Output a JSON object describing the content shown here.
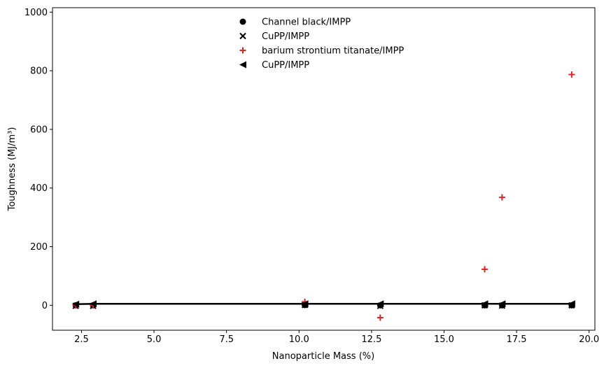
{
  "chart_data": {
    "type": "scatter",
    "xlabel": "Nanoparticle Mass (%)",
    "ylabel": "Toughness (MJ/m³)",
    "xlim": [
      1.5,
      20.2
    ],
    "ylim": [
      -85,
      1015
    ],
    "xticks": [
      2.5,
      5.0,
      7.5,
      10.0,
      12.5,
      15.0,
      17.5,
      20.0
    ],
    "xtick_labels": [
      "2.5",
      "5.0",
      "7.5",
      "10.0",
      "12.5",
      "15.0",
      "17.5",
      "20.0"
    ],
    "yticks": [
      0,
      200,
      400,
      600,
      800,
      1000
    ],
    "ytick_labels": [
      "0",
      "200",
      "400",
      "600",
      "800",
      "1000"
    ],
    "legend_position": "top-center",
    "series": [
      {
        "name": "Channel black/IMPP",
        "marker": "circle",
        "color": "#000000",
        "x": [
          2.3,
          2.9,
          10.2,
          12.8,
          16.4,
          17.0,
          19.4
        ],
        "y": [
          0,
          0,
          1,
          0,
          0,
          0,
          0
        ]
      },
      {
        "name": "CuPP/IMPP",
        "marker": "x",
        "color": "#000000",
        "x": [
          2.3,
          2.9,
          10.2,
          12.8,
          16.4,
          17.0,
          19.4
        ],
        "y": [
          -2,
          -2,
          1,
          -2,
          0,
          -1,
          0
        ]
      },
      {
        "name": "barium strontium titanate/IMPP",
        "marker": "plus",
        "color": "#d62728",
        "x": [
          2.3,
          2.9,
          10.2,
          12.8,
          16.4,
          17.0,
          19.4
        ],
        "y": [
          0,
          0,
          12,
          -42,
          123,
          368,
          787
        ]
      },
      {
        "name": "CuPP/IMPP",
        "marker": "triangle-left",
        "color": "#000000",
        "line": true,
        "x": [
          2.3,
          2.9,
          10.2,
          12.8,
          16.4,
          17.0,
          19.4
        ],
        "y": [
          4,
          5,
          5,
          5,
          5,
          5,
          5
        ]
      }
    ]
  }
}
